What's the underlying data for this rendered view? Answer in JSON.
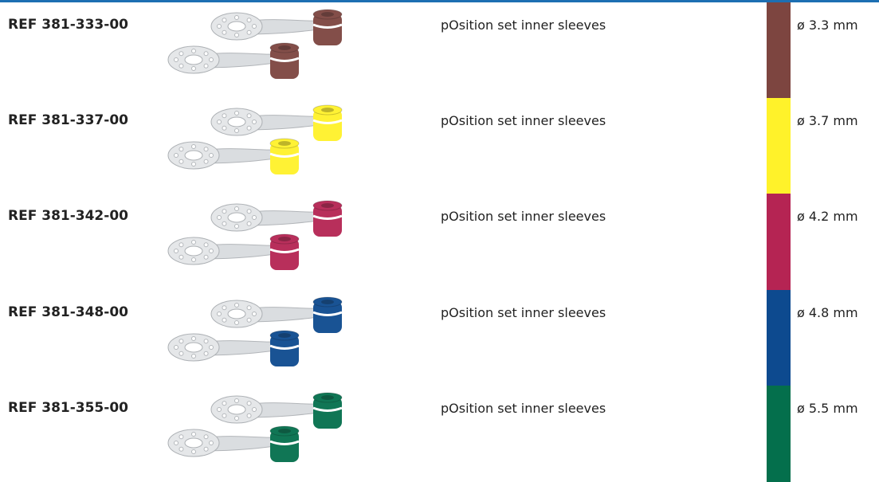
{
  "table": {
    "rows": [
      {
        "ref": "REF 381-333-00",
        "description": "pOsition set inner sleeves",
        "diameter": "ø 3.3 mm",
        "color": "#7d4540"
      },
      {
        "ref": "REF 381-337-00",
        "description": "pOsition set inner sleeves",
        "diameter": "ø 3.7 mm",
        "color": "#fff22a"
      },
      {
        "ref": "REF 381-342-00",
        "description": "pOsition set inner sleeves",
        "diameter": "ø 4.2 mm",
        "color": "#b52453"
      },
      {
        "ref": "REF 381-348-00",
        "description": "pOsition set inner sleeves",
        "diameter": "ø 4.8 mm",
        "color": "#0d4a8f"
      },
      {
        "ref": "REF 381-355-00",
        "description": "pOsition set inner sleeves",
        "diameter": "ø 5.5 mm",
        "color": "#046f4c"
      }
    ]
  }
}
